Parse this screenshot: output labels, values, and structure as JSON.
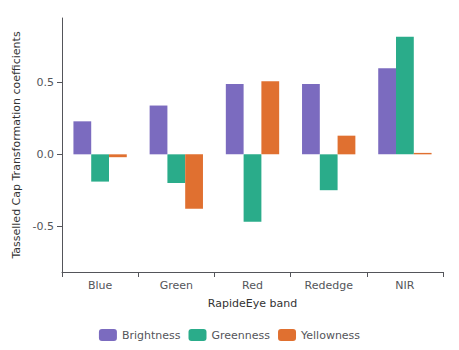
{
  "chart_data": {
    "type": "bar",
    "xlabel": "RapideEye band",
    "ylabel": "Tasselled Cap Transformation coefficients",
    "categories": [
      "Blue",
      "Green",
      "Red",
      "Rededge",
      "NIR"
    ],
    "series": [
      {
        "name": "Brightness",
        "color": "#7b6bbf",
        "values": [
          0.23,
          0.34,
          0.49,
          0.49,
          0.6
        ]
      },
      {
        "name": "Greenness",
        "color": "#2aac8a",
        "values": [
          -0.19,
          -0.2,
          -0.47,
          -0.25,
          0.82
        ]
      },
      {
        "name": "Yellowness",
        "color": "#e07030",
        "values": [
          -0.02,
          -0.38,
          0.51,
          0.13,
          0.01
        ]
      }
    ],
    "ylim": [
      -0.82,
      0.95
    ],
    "yticks": [
      -0.5,
      {
        "value": 0,
        "label": "0.0"
      },
      0.5
    ],
    "grid": false,
    "legend": "bottom"
  }
}
